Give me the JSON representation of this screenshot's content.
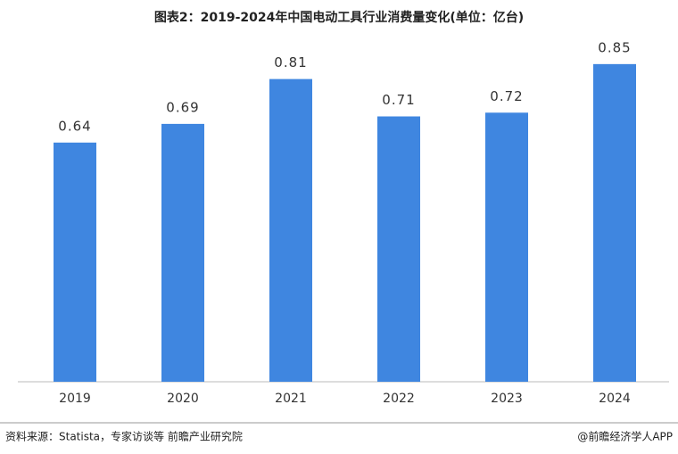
{
  "chart_data": {
    "type": "bar",
    "title": "图表2：2019-2024年中国电动工具行业消费量变化(单位：亿台)",
    "categories": [
      "2019",
      "2020",
      "2021",
      "2022",
      "2023",
      "2024"
    ],
    "values": [
      0.64,
      0.69,
      0.81,
      0.71,
      0.72,
      0.85
    ],
    "color": "#3f86e0",
    "ylim": [
      0,
      1.0
    ],
    "source": "资料来源：Statista，专家访谈等 前瞻产业研究院",
    "credit": "@前瞻经济学人APP"
  }
}
